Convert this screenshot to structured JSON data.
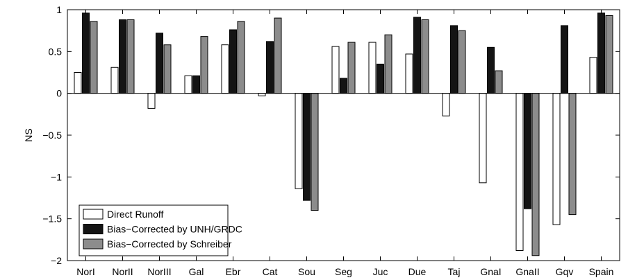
{
  "chart_data": {
    "type": "bar",
    "title": "",
    "xlabel": "",
    "ylabel": "NS",
    "ylim": [
      -2,
      1
    ],
    "yticks": [
      1,
      0.5,
      0,
      -0.5,
      -1,
      -1.5,
      -2
    ],
    "ytick_labels": [
      "1",
      "0.5",
      "0",
      "−0.5",
      "−1",
      "−1.5",
      "−2"
    ],
    "grid": false,
    "legend_position": "bottom-left",
    "categories": [
      "NorI",
      "NorII",
      "NorIII",
      "Gal",
      "Ebr",
      "Cat",
      "Sou",
      "Seg",
      "Juc",
      "Due",
      "Taj",
      "GnaI",
      "GnaII",
      "Gqv",
      "Spain"
    ],
    "series": [
      {
        "name": "Direct Runoff",
        "color": "#ffffff",
        "values": [
          0.25,
          0.31,
          -0.18,
          0.21,
          0.58,
          -0.03,
          -1.14,
          0.56,
          0.61,
          0.47,
          -0.27,
          -1.07,
          -1.88,
          -1.57,
          0.43
        ]
      },
      {
        "name": "Bias−Corrected by UNH/GRDC",
        "color": "#141414",
        "values": [
          0.96,
          0.88,
          0.72,
          0.21,
          0.76,
          0.62,
          -1.28,
          0.18,
          0.35,
          0.91,
          0.81,
          0.55,
          -1.38,
          0.81,
          0.96
        ]
      },
      {
        "name": "Bias−Corrected by Schreiber",
        "color": "#8c8c8c",
        "values": [
          0.86,
          0.88,
          0.58,
          0.68,
          0.86,
          0.9,
          -1.4,
          0.61,
          0.7,
          0.88,
          0.75,
          0.27,
          -1.94,
          -1.45,
          0.93
        ]
      }
    ]
  }
}
